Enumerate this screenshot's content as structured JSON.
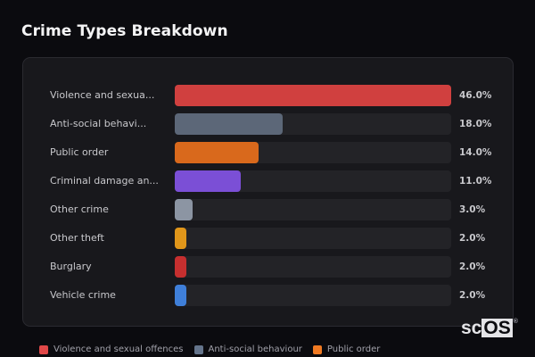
{
  "title": "Crime Types Breakdown",
  "chart_data": {
    "type": "bar",
    "orientation": "horizontal",
    "title": "Crime Types Breakdown",
    "categories": [
      "Violence and sexual offences",
      "Anti-social behaviour",
      "Public order",
      "Criminal damage and arson",
      "Other crime",
      "Other theft",
      "Burglary",
      "Vehicle crime"
    ],
    "display_labels": [
      "Violence and sexua...",
      "Anti-social behavi...",
      "Public order",
      "Criminal damage an...",
      "Other crime",
      "Other theft",
      "Burglary",
      "Vehicle crime"
    ],
    "values": [
      46.0,
      18.0,
      14.0,
      11.0,
      3.0,
      2.0,
      2.0,
      2.0
    ],
    "value_labels": [
      "46.0%",
      "18.0%",
      "14.0%",
      "11.0%",
      "3.0%",
      "2.0%",
      "2.0%",
      "2.0%"
    ],
    "colors": [
      "#d0403f",
      "#5c6778",
      "#d9691c",
      "#7b4fd6",
      "#8c95a3",
      "#e0961a",
      "#c62f2f",
      "#3f7fd9"
    ],
    "xlabel": "",
    "ylabel": "",
    "xlim": [
      0,
      46
    ],
    "grid": false,
    "legend_position": "bottom"
  },
  "rows": [
    {
      "label": "Violence and sexua...",
      "value": "46.0%",
      "pct": 100,
      "color": "#d0403f"
    },
    {
      "label": "Anti-social behavi...",
      "value": "18.0%",
      "pct": 39.1,
      "color": "#5c6778"
    },
    {
      "label": "Public order",
      "value": "14.0%",
      "pct": 30.4,
      "color": "#d9691c"
    },
    {
      "label": "Criminal damage an...",
      "value": "11.0%",
      "pct": 23.9,
      "color": "#7b4fd6"
    },
    {
      "label": "Other crime",
      "value": "3.0%",
      "pct": 6.5,
      "color": "#8c95a3"
    },
    {
      "label": "Other theft",
      "value": "2.0%",
      "pct": 4.3,
      "color": "#e0961a"
    },
    {
      "label": "Burglary",
      "value": "2.0%",
      "pct": 4.3,
      "color": "#c62f2f"
    },
    {
      "label": "Vehicle crime",
      "value": "2.0%",
      "pct": 4.3,
      "color": "#3f7fd9"
    }
  ],
  "legend": [
    {
      "label": "Violence and sexual offences",
      "color": "#e04848"
    },
    {
      "label": "Anti-social behaviour",
      "color": "#64748b"
    },
    {
      "label": "Public order",
      "color": "#f07a22"
    }
  ],
  "brand": {
    "sc": "sc",
    "os": "OS",
    "reg": "®"
  }
}
